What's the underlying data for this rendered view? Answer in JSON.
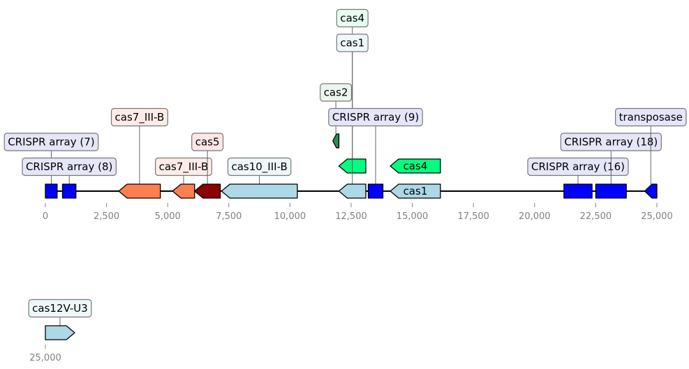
{
  "chart_data": {
    "type": "gene-map",
    "tracks": [
      {
        "name": "",
        "range": [
          0,
          25000
        ],
        "ticks": [
          0,
          2500,
          5000,
          7500,
          10000,
          12500,
          15000,
          17500,
          20000,
          22500,
          25000
        ],
        "tick_labels": [
          "0",
          "2,500",
          "5,000",
          "7,500",
          "10,000",
          "12,500",
          "15,000",
          "17,500",
          "20,000",
          "22,500",
          "25,000"
        ],
        "features": [
          {
            "label": "CRISPR array (7)",
            "start": 0,
            "end": 480,
            "strand": 0,
            "color": "#0000ff",
            "label_box": "#e6e6fa",
            "level": 1
          },
          {
            "label": "CRISPR array (8)",
            "start": 700,
            "end": 1250,
            "strand": 0,
            "color": "#0000ff",
            "label_box": "#e6e6fa",
            "level": 0
          },
          {
            "label": "cas7_III-B",
            "start": 3000,
            "end": 4700,
            "strand": -1,
            "color": "#ff7f50",
            "label_box": "#ffece6",
            "level": 2
          },
          {
            "label": "cas7_III-B",
            "start": 5200,
            "end": 6100,
            "strand": -1,
            "color": "#ff7f50",
            "label_box": "#ffece6",
            "level": 0
          },
          {
            "label": "cas5",
            "start": 6100,
            "end": 7150,
            "strand": -1,
            "color": "#8b0000",
            "label_box": "#ffe6e6",
            "level": 1
          },
          {
            "label": "cas10_III-B",
            "start": 7200,
            "end": 10300,
            "strand": -1,
            "color": "#add8e6",
            "label_box": "#eef8fb",
            "level": 0
          },
          {
            "label": "cas2",
            "start": 11750,
            "end": 12000,
            "strand": -1,
            "color": "#2e8b57",
            "label_box": "#eaf6ee",
            "level": 3,
            "row": -2
          },
          {
            "label": "cas4",
            "start": 12000,
            "end": 13100,
            "strand": -1,
            "color": "#00ff7f",
            "label_box": "#e6fff2",
            "level": 6,
            "row": -1
          },
          {
            "label": "cas1",
            "start": 12000,
            "end": 13100,
            "strand": -1,
            "color": "#add8e6",
            "label_box": "#eef8fb",
            "level": 5
          },
          {
            "label": "CRISPR array (9)",
            "start": 13200,
            "end": 13800,
            "strand": 0,
            "color": "#0000ff",
            "label_box": "#e6e6fa",
            "level": 2
          },
          {
            "label": "cas4",
            "start": 14100,
            "end": 16150,
            "strand": -1,
            "color": "#00ff7f",
            "inline": true,
            "row": -1
          },
          {
            "label": "cas1",
            "start": 14100,
            "end": 16150,
            "strand": -1,
            "color": "#add8e6",
            "inline": true
          },
          {
            "label": "CRISPR array (16)",
            "start": 21200,
            "end": 22350,
            "strand": 0,
            "color": "#0000ff",
            "label_box": "#e6e6fa",
            "level": 0
          },
          {
            "label": "CRISPR array (18)",
            "start": 22500,
            "end": 23750,
            "strand": 0,
            "color": "#0000ff",
            "label_box": "#e6e6fa",
            "level": 1
          },
          {
            "label": "transposase",
            "start": 24500,
            "end": 25000,
            "strand": -1,
            "color": "#0000ff",
            "label_box": "#e6e6fa",
            "level": 2
          }
        ]
      },
      {
        "name": "",
        "range": [
          25000,
          26200
        ],
        "ticks": [
          25000
        ],
        "tick_labels": [
          "25,000"
        ],
        "features": [
          {
            "label": "cas12V-U3",
            "start": 25000,
            "end": 26200,
            "strand": 1,
            "color": "#add8e6",
            "label_box": "#eef8fb",
            "level": 0
          }
        ]
      }
    ]
  }
}
